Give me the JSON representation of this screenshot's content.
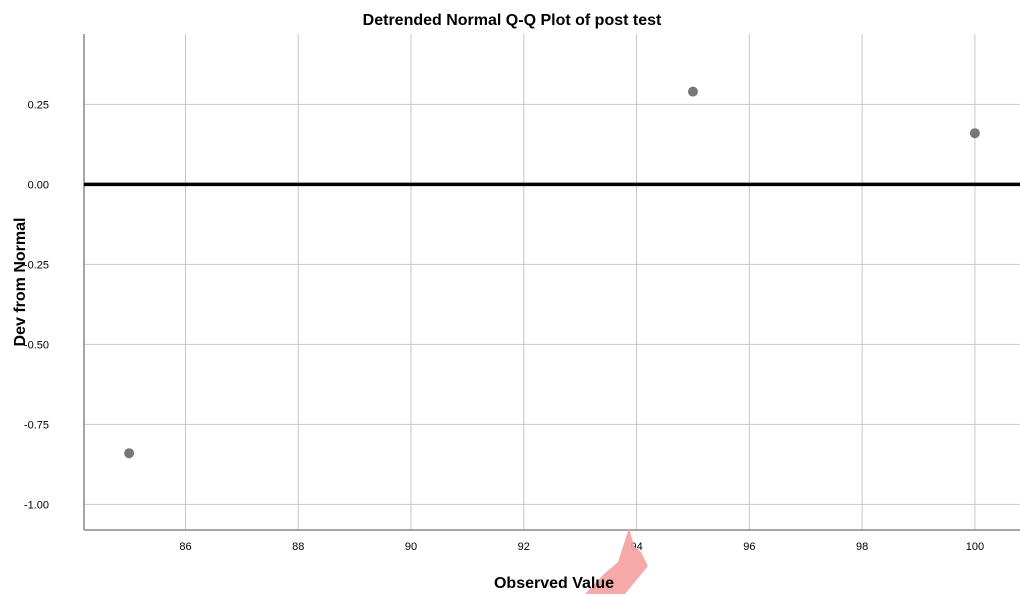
{
  "chart_data": {
    "type": "scatter",
    "title": "Detrended Normal Q-Q Plot of post test",
    "xlabel": "Observed Value",
    "ylabel": "Dev from Normal",
    "xlim": [
      84.2,
      100.8
    ],
    "ylim": [
      -1.08,
      0.47
    ],
    "xticks": [
      86,
      88,
      90,
      92,
      94,
      96,
      98,
      100
    ],
    "yticks": [
      0.25,
      0.0,
      -0.25,
      -0.5,
      -0.75,
      -1.0
    ],
    "xtick_labels": [
      "86",
      "88",
      "90",
      "92",
      "94",
      "96",
      "98",
      "100"
    ],
    "ytick_labels": [
      "0.25",
      "0.00",
      "-0.25",
      "-0.50",
      "-0.75",
      "-1.00"
    ],
    "grid": true,
    "reference_line_y": 0,
    "colors": {
      "points": "#777777",
      "grid": "#c8c8c8",
      "reference": "#000000",
      "axis": "#888888",
      "annotation": "#f4a0a0"
    },
    "points": [
      {
        "x": 85,
        "y": -0.84
      },
      {
        "x": 95,
        "y": 0.29
      },
      {
        "x": 100,
        "y": 0.16
      }
    ]
  }
}
